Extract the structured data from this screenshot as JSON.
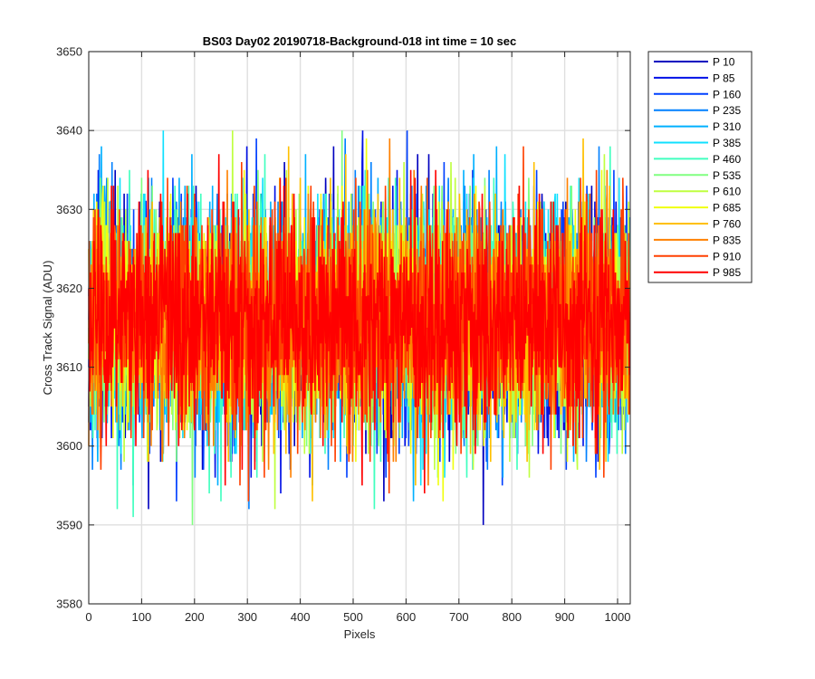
{
  "chart_data": {
    "type": "line",
    "title": "BS03 Day02 20190718-Background-018 int time = 10 sec",
    "xlabel": "Pixels",
    "ylabel": "Cross Track Signal (ADU)",
    "xlim": [
      0,
      1024
    ],
    "ylim": [
      3580,
      3650
    ],
    "xticks": [
      0,
      100,
      200,
      300,
      400,
      500,
      600,
      700,
      800,
      900,
      1000
    ],
    "yticks": [
      3580,
      3590,
      3600,
      3610,
      3620,
      3630,
      3640,
      3650
    ],
    "grid": true,
    "legend_position": "outside-top-right",
    "noise_model": {
      "points_per_series": 1024,
      "mean": 3616,
      "std": 7
    },
    "series": [
      {
        "name": "P 10",
        "color": "#0000bf"
      },
      {
        "name": "P 85",
        "color": "#0010e6"
      },
      {
        "name": "P 160",
        "color": "#0040ff"
      },
      {
        "name": "P 235",
        "color": "#0080ff"
      },
      {
        "name": "P 310",
        "color": "#00b0ff"
      },
      {
        "name": "P 385",
        "color": "#10e0ff"
      },
      {
        "name": "P 460",
        "color": "#40ffbf"
      },
      {
        "name": "P 535",
        "color": "#80ff80"
      },
      {
        "name": "P 610",
        "color": "#bfff40"
      },
      {
        "name": "P 685",
        "color": "#f0ff10"
      },
      {
        "name": "P 760",
        "color": "#ffc000"
      },
      {
        "name": "P 835",
        "color": "#ff8000"
      },
      {
        "name": "P 910",
        "color": "#ff4000"
      },
      {
        "name": "P 985",
        "color": "#ff0000"
      }
    ]
  }
}
